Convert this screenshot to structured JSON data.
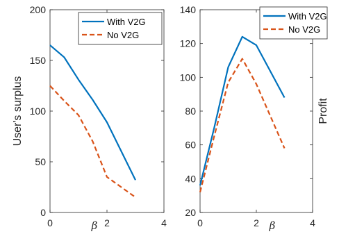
{
  "chart_data": [
    {
      "type": "line",
      "xlabel": "β",
      "ylabel": "User's surplus",
      "xlim": [
        0,
        4
      ],
      "ylim": [
        0,
        200
      ],
      "xticks": [
        "0",
        "2",
        "4"
      ],
      "yticks": [
        "0",
        "50",
        "100",
        "150",
        "200"
      ],
      "grid": false,
      "legend": "top-right",
      "series": [
        {
          "name": "With V2G",
          "color": "#0072BD",
          "style": "solid",
          "x": [
            0,
            0.5,
            1,
            1.5,
            2,
            3
          ],
          "y": [
            165,
            153,
            131,
            111,
            89,
            32
          ]
        },
        {
          "name": "No V2G",
          "color": "#D95319",
          "style": "dashed",
          "x": [
            0,
            0.5,
            1,
            1.5,
            2,
            3
          ],
          "y": [
            125,
            110,
            96,
            70,
            35,
            15
          ]
        }
      ]
    },
    {
      "type": "line",
      "xlabel": "β",
      "ylabel": "Profit",
      "xlim": [
        0,
        4
      ],
      "ylim": [
        20,
        140
      ],
      "xticks": [
        "0",
        "2",
        "4"
      ],
      "yticks": [
        "20",
        "40",
        "60",
        "80",
        "100",
        "120",
        "140"
      ],
      "grid": false,
      "legend": "top-right",
      "series": [
        {
          "name": "With V2G",
          "color": "#0072BD",
          "style": "solid",
          "x": [
            0,
            0.5,
            1,
            1.5,
            2,
            3
          ],
          "y": [
            36,
            70,
            106,
            124,
            119,
            88
          ]
        },
        {
          "name": "No V2G",
          "color": "#D95319",
          "style": "dashed",
          "x": [
            0,
            0.5,
            1,
            1.5,
            2,
            3
          ],
          "y": [
            32,
            65,
            97,
            111,
            96,
            58
          ]
        }
      ]
    }
  ]
}
